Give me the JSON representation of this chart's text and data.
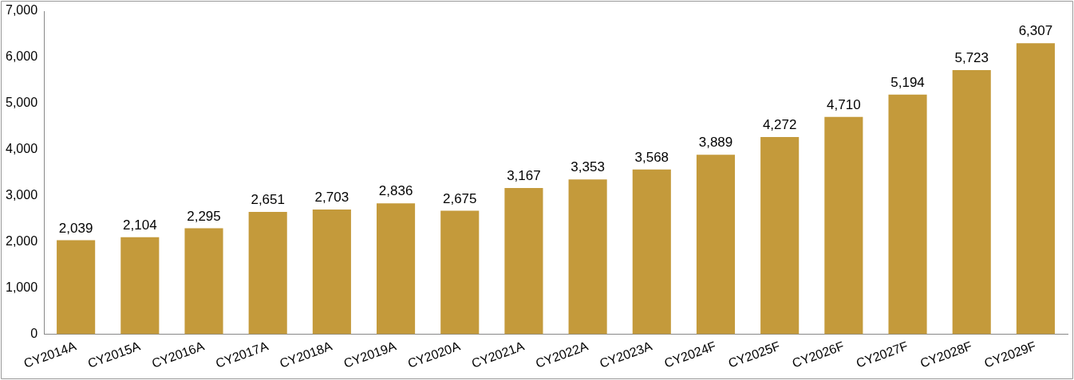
{
  "chart_data": {
    "type": "bar",
    "categories": [
      "CY2014A",
      "CY2015A",
      "CY2016A",
      "CY2017A",
      "CY2018A",
      "CY2019A",
      "CY2020A",
      "CY2021A",
      "CY2022A",
      "CY2023A",
      "CY2024F",
      "CY2025F",
      "CY2026F",
      "CY2027F",
      "CY2028F",
      "CY2029F"
    ],
    "values": [
      2039,
      2104,
      2295,
      2651,
      2703,
      2836,
      2675,
      3167,
      3353,
      3568,
      3889,
      4272,
      4710,
      5194,
      5723,
      6307
    ],
    "value_labels": [
      "2,039",
      "2,104",
      "2,295",
      "2,651",
      "2,703",
      "2,836",
      "2,675",
      "3,167",
      "3,353",
      "3,568",
      "3,889",
      "4,272",
      "4,710",
      "5,194",
      "5,723",
      "6,307"
    ],
    "color": "#c49a3b",
    "ylim": [
      0,
      7000
    ],
    "yticks": [
      0,
      {
        "value": 1000,
        "label": "1,000"
      },
      {
        "value": 2000,
        "label": "2,000"
      },
      {
        "value": 3000,
        "label": "3,000"
      },
      {
        "value": 4000,
        "label": "4,000"
      },
      {
        "value": 5000,
        "label": "5,000"
      },
      {
        "value": 6000,
        "label": "6,000"
      },
      {
        "value": 7000,
        "label": "7,000"
      }
    ],
    "grid": false,
    "legend": false
  }
}
